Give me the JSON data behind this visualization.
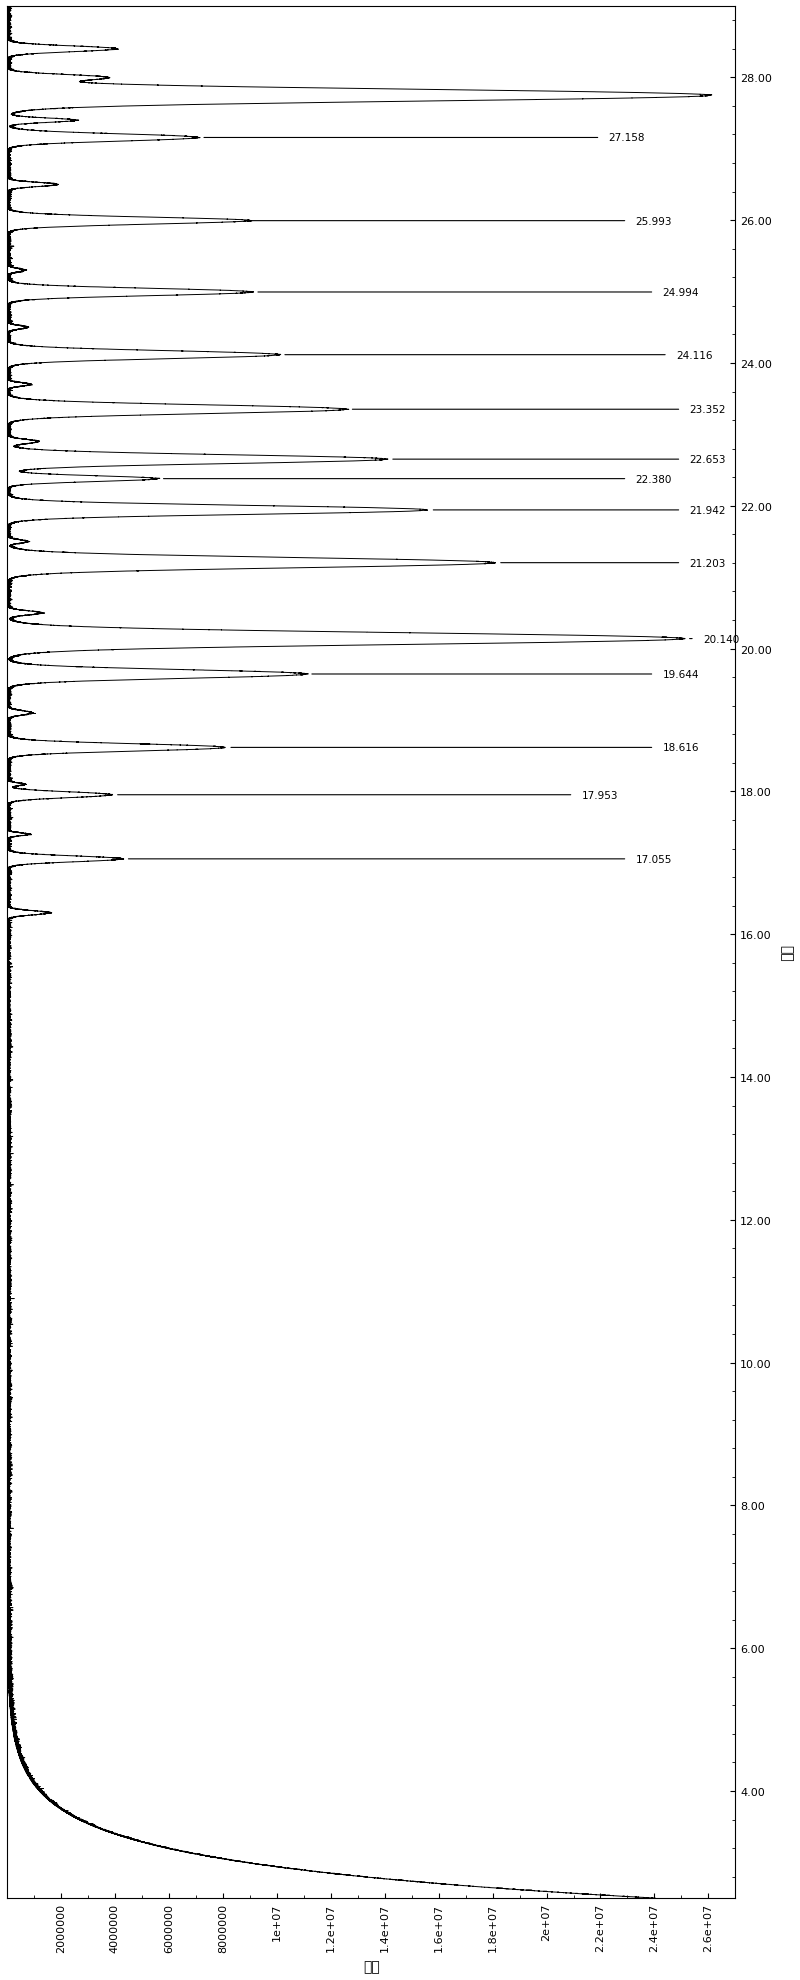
{
  "title": "",
  "xlabel_rotated": "时间",
  "ylabel_rotated": "丰度",
  "x_label": "丰度",
  "y_label": "时间",
  "yticks": [
    4.0,
    6.0,
    8.0,
    10.0,
    12.0,
    14.0,
    16.0,
    18.0,
    20.0,
    22.0,
    24.0,
    26.0,
    28.0
  ],
  "xticks_labels": [
    "2000000",
    "4000000",
    "6000000",
    "8000000",
    "1e+07",
    "1.2e+07",
    "1.4e+07",
    "1.6e+07",
    "1.8e+07",
    "2e+07",
    "2.2e+07",
    "2.4e+07",
    "2.6e+07"
  ],
  "xticks_values": [
    2000000,
    4000000,
    6000000,
    8000000,
    10000000,
    12000000,
    14000000,
    16000000,
    18000000,
    20000000,
    22000000,
    24000000,
    26000000
  ],
  "ylim": [
    2.5,
    29.0
  ],
  "xlim": [
    0,
    27000000
  ],
  "peak_labels": [
    "17.055",
    "17.953",
    "18.616",
    "19.644",
    "20.140",
    "21.203",
    "21.942",
    "22.653",
    "22.380",
    "23.352",
    "24.116",
    "24.994",
    "25.993",
    "27.158"
  ],
  "peak_times": [
    17.055,
    17.953,
    18.616,
    19.644,
    20.14,
    21.203,
    21.942,
    22.653,
    22.38,
    23.352,
    24.116,
    24.994,
    25.993,
    27.158
  ],
  "peak_intensities": [
    4200000,
    3800000,
    8000000,
    11000000,
    25000000,
    18000000,
    15500000,
    14000000,
    5500000,
    12500000,
    10000000,
    9000000,
    8500000,
    7000000
  ],
  "background_color": "#ffffff",
  "line_color": "#000000"
}
